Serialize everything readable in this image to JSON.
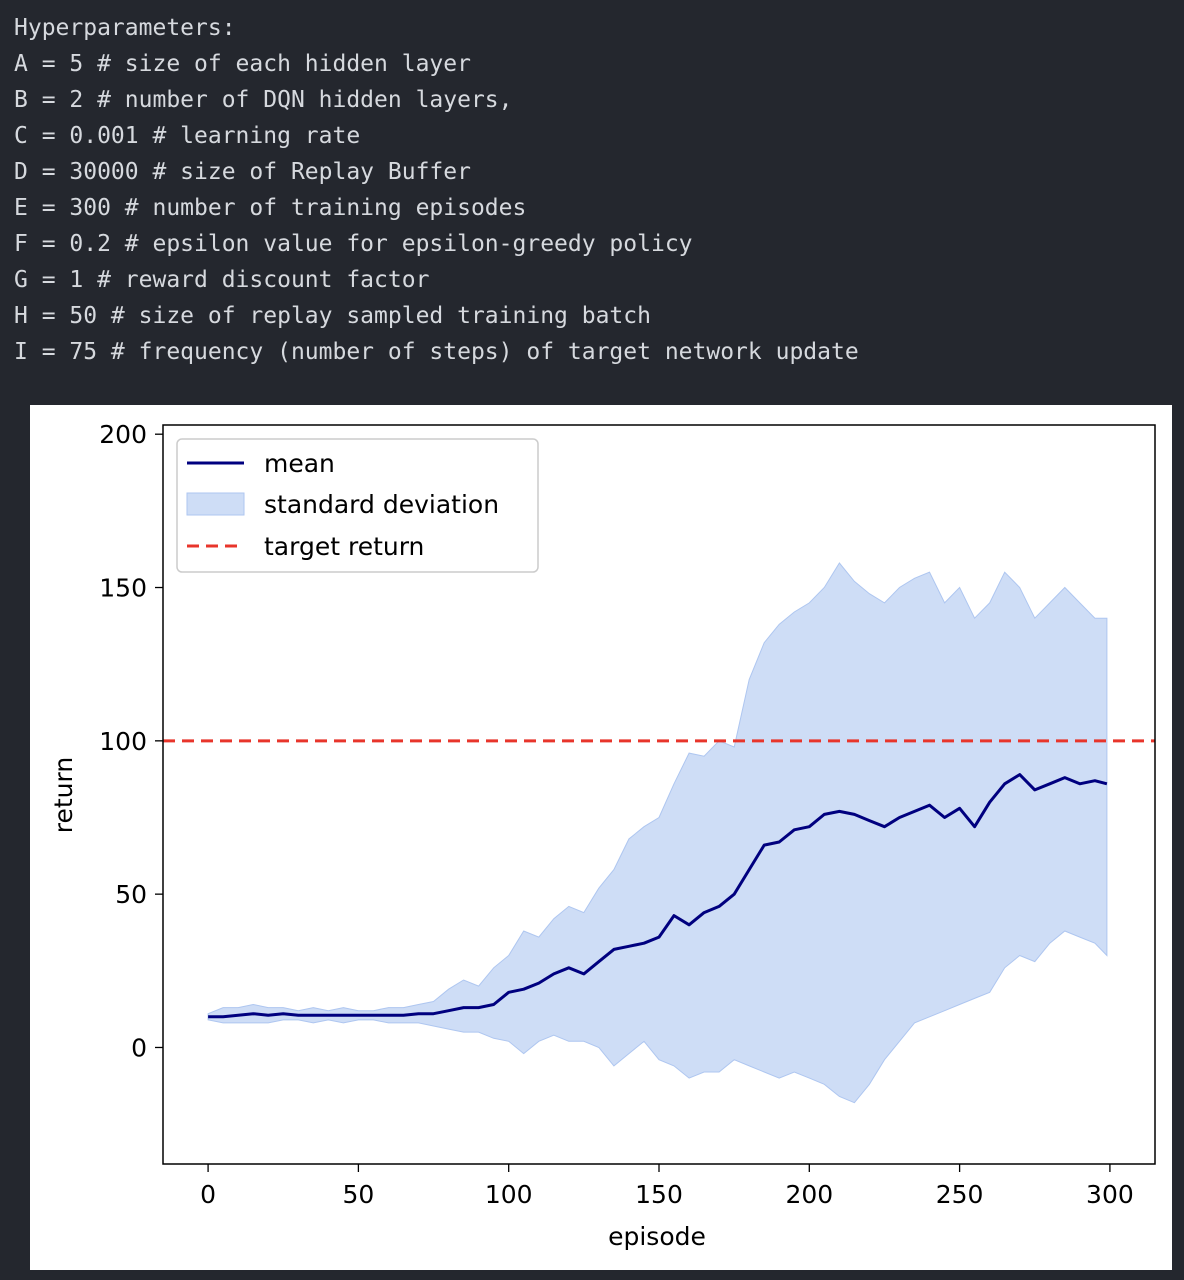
{
  "code": {
    "lines": [
      "Hyperparameters:",
      "A = 5 # size of each hidden layer",
      "B = 2 # number of DQN hidden layers,",
      "C = 0.001 # learning rate",
      "D = 30000 # size of Replay Buffer",
      "E = 300 # number of training episodes",
      "F = 0.2 # epsilon value for epsilon-greedy policy",
      "G = 1 # reward discount factor",
      "H = 50 # size of replay sampled training batch",
      "I = 75 # frequency (number of steps) of target network update"
    ]
  },
  "chart_data": {
    "type": "line",
    "xlabel": "episode",
    "ylabel": "return",
    "xlim": [
      -15,
      315
    ],
    "ylim": [
      -38,
      203
    ],
    "xticks": [
      0,
      50,
      100,
      150,
      200,
      250,
      300
    ],
    "yticks": [
      0,
      50,
      100,
      150,
      200
    ],
    "grid": false,
    "legend": {
      "placement": "upper-left",
      "entries": [
        {
          "label": "mean",
          "style": "line",
          "color": "#00007f"
        },
        {
          "label": "standard deviation",
          "style": "band",
          "color": "#aec6f0"
        },
        {
          "label": "target return",
          "style": "dashed",
          "color": "#e8352b"
        }
      ]
    },
    "target_return": 100,
    "x": [
      0,
      5,
      10,
      15,
      20,
      25,
      30,
      35,
      40,
      45,
      50,
      55,
      60,
      65,
      70,
      75,
      80,
      85,
      90,
      95,
      100,
      105,
      110,
      115,
      120,
      125,
      130,
      135,
      140,
      145,
      150,
      155,
      160,
      165,
      170,
      175,
      180,
      185,
      190,
      195,
      200,
      205,
      210,
      215,
      220,
      225,
      230,
      235,
      240,
      245,
      250,
      255,
      260,
      265,
      270,
      275,
      280,
      285,
      290,
      295,
      299
    ],
    "series": [
      {
        "name": "mean",
        "values": [
          10,
          10,
          10.5,
          11,
          10.5,
          11,
          10.5,
          10.5,
          10.5,
          10.5,
          10.5,
          10.5,
          10.5,
          10.5,
          11,
          11,
          12,
          13,
          13,
          14,
          18,
          19,
          21,
          24,
          26,
          24,
          28,
          32,
          33,
          34,
          36,
          43,
          40,
          44,
          46,
          50,
          58,
          66,
          67,
          71,
          72,
          76,
          77,
          76,
          74,
          72,
          75,
          77,
          79,
          75,
          78,
          72,
          80,
          86,
          89,
          84,
          86,
          88,
          86,
          87,
          86
        ]
      },
      {
        "name": "standard deviation",
        "upper": [
          11,
          13,
          13,
          14,
          13,
          13,
          12,
          13,
          12,
          13,
          12,
          12,
          13,
          13,
          14,
          15,
          19,
          22,
          20,
          26,
          30,
          38,
          36,
          42,
          46,
          44,
          52,
          58,
          68,
          72,
          75,
          86,
          96,
          95,
          100,
          98,
          120,
          132,
          138,
          142,
          145,
          150,
          158,
          152,
          148,
          145,
          150,
          153,
          155,
          145,
          150,
          140,
          145,
          155,
          150,
          140,
          145,
          150,
          145,
          140,
          140
        ],
        "lower": [
          9,
          8,
          8,
          8,
          8,
          9,
          9,
          8,
          9,
          8,
          9,
          9,
          8,
          8,
          8,
          7,
          6,
          5,
          5,
          3,
          2,
          -2,
          2,
          4,
          2,
          2,
          0,
          -6,
          -2,
          2,
          -4,
          -6,
          -10,
          -8,
          -8,
          -4,
          -6,
          -8,
          -10,
          -8,
          -10,
          -12,
          -16,
          -18,
          -12,
          -4,
          2,
          8,
          10,
          12,
          14,
          16,
          18,
          26,
          30,
          28,
          34,
          38,
          36,
          34,
          30
        ]
      }
    ]
  }
}
